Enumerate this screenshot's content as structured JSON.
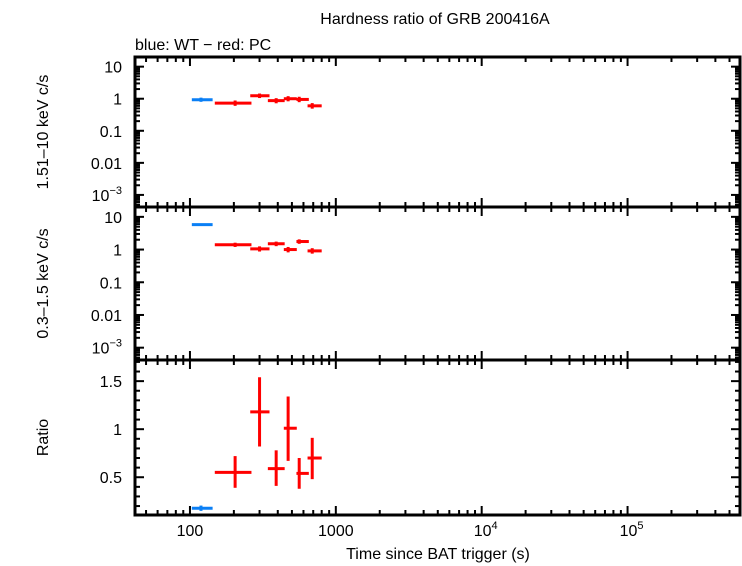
{
  "chart_data": {
    "type": "scatter",
    "title": "Hardness ratio of GRB 200416A",
    "subtitle": "blue: WT − red: PC",
    "xlabel": "Time since BAT trigger (s)",
    "xscale": "log",
    "xlim": [
      42,
      590000
    ],
    "xticks": [
      {
        "value": 100,
        "label": "100",
        "sup": ""
      },
      {
        "value": 1000,
        "label": "1000",
        "sup": ""
      },
      {
        "value": 10000,
        "label": "10",
        "sup": "4"
      },
      {
        "value": 100000,
        "label": "10",
        "sup": "5"
      }
    ],
    "colors": {
      "WT": "#0a7ff5",
      "PC": "#ff0000"
    },
    "panels": [
      {
        "ylabel": "1.51–10 keV c/s",
        "yscale": "log",
        "ylim": [
          0.00042,
          20
        ],
        "yticks": [
          {
            "value": 10,
            "label": "10",
            "sup": ""
          },
          {
            "value": 1,
            "label": "1",
            "sup": ""
          },
          {
            "value": 0.1,
            "label": "0.1",
            "sup": ""
          },
          {
            "value": 0.01,
            "label": "0.01",
            "sup": ""
          },
          {
            "value": 0.001,
            "label": "10",
            "sup": "−3"
          }
        ],
        "points": [
          {
            "mode": "WT",
            "x": 119,
            "xlo": 103,
            "xhi": 143,
            "y": 0.93,
            "ylo": 0.8,
            "yhi": 1.08
          },
          {
            "mode": "PC",
            "x": 204,
            "xlo": 148,
            "xhi": 264,
            "y": 0.73,
            "ylo": 0.6,
            "yhi": 0.88
          },
          {
            "mode": "PC",
            "x": 300,
            "xlo": 259,
            "xhi": 351,
            "y": 1.24,
            "ylo": 1.05,
            "yhi": 1.45
          },
          {
            "mode": "PC",
            "x": 390,
            "xlo": 342,
            "xhi": 446,
            "y": 0.87,
            "ylo": 0.72,
            "yhi": 1.04
          },
          {
            "mode": "PC",
            "x": 471,
            "xlo": 440,
            "xhi": 540,
            "y": 1.0,
            "ylo": 0.83,
            "yhi": 1.2
          },
          {
            "mode": "PC",
            "x": 561,
            "xlo": 537,
            "xhi": 653,
            "y": 0.95,
            "ylo": 0.78,
            "yhi": 1.15
          },
          {
            "mode": "PC",
            "x": 689,
            "xlo": 640,
            "xhi": 800,
            "y": 0.6,
            "ylo": 0.49,
            "yhi": 0.73
          }
        ]
      },
      {
        "ylabel": "0.3–1.5 keV c/s",
        "yscale": "log",
        "ylim": [
          0.00042,
          20
        ],
        "yticks": [
          {
            "value": 10,
            "label": "10",
            "sup": ""
          },
          {
            "value": 1,
            "label": "1",
            "sup": ""
          },
          {
            "value": 0.1,
            "label": "0.1",
            "sup": ""
          },
          {
            "value": 0.01,
            "label": "0.01",
            "sup": ""
          },
          {
            "value": 0.001,
            "label": "10",
            "sup": "−3"
          }
        ],
        "points": [
          {
            "mode": "WT",
            "x": 119,
            "xlo": 103,
            "xhi": 143,
            "y": 5.8,
            "ylo": 5.4,
            "yhi": 6.2
          },
          {
            "mode": "PC",
            "x": 204,
            "xlo": 148,
            "xhi": 264,
            "y": 1.4,
            "ylo": 1.2,
            "yhi": 1.62
          },
          {
            "mode": "PC",
            "x": 300,
            "xlo": 259,
            "xhi": 351,
            "y": 1.05,
            "ylo": 0.87,
            "yhi": 1.25
          },
          {
            "mode": "PC",
            "x": 390,
            "xlo": 342,
            "xhi": 446,
            "y": 1.5,
            "ylo": 1.27,
            "yhi": 1.75
          },
          {
            "mode": "PC",
            "x": 471,
            "xlo": 440,
            "xhi": 540,
            "y": 1.0,
            "ylo": 0.82,
            "yhi": 1.2
          },
          {
            "mode": "PC",
            "x": 561,
            "xlo": 537,
            "xhi": 653,
            "y": 1.76,
            "ylo": 1.5,
            "yhi": 2.05
          },
          {
            "mode": "PC",
            "x": 689,
            "xlo": 640,
            "xhi": 800,
            "y": 0.91,
            "ylo": 0.75,
            "yhi": 1.1
          }
        ]
      },
      {
        "ylabel": "Ratio",
        "yscale": "linear",
        "ylim": [
          0.107,
          1.72
        ],
        "yticks": [
          {
            "value": 1.5,
            "label": "1.5",
            "sup": ""
          },
          {
            "value": 1,
            "label": "1",
            "sup": ""
          },
          {
            "value": 0.5,
            "label": "0.5",
            "sup": ""
          }
        ],
        "points": [
          {
            "mode": "WT",
            "x": 119,
            "xlo": 103,
            "xhi": 143,
            "y": 0.177,
            "ylo": 0.15,
            "yhi": 0.205
          },
          {
            "mode": "PC",
            "x": 204,
            "xlo": 148,
            "xhi": 264,
            "y": 0.55,
            "ylo": 0.39,
            "yhi": 0.72
          },
          {
            "mode": "PC",
            "x": 300,
            "xlo": 259,
            "xhi": 351,
            "y": 1.18,
            "ylo": 0.82,
            "yhi": 1.54
          },
          {
            "mode": "PC",
            "x": 390,
            "xlo": 342,
            "xhi": 446,
            "y": 0.59,
            "ylo": 0.41,
            "yhi": 0.78
          },
          {
            "mode": "PC",
            "x": 471,
            "xlo": 440,
            "xhi": 540,
            "y": 1.01,
            "ylo": 0.67,
            "yhi": 1.34
          },
          {
            "mode": "PC",
            "x": 561,
            "xlo": 537,
            "xhi": 653,
            "y": 0.54,
            "ylo": 0.38,
            "yhi": 0.7
          },
          {
            "mode": "PC",
            "x": 689,
            "xlo": 640,
            "xhi": 800,
            "y": 0.7,
            "ylo": 0.48,
            "yhi": 0.91
          }
        ]
      }
    ]
  }
}
